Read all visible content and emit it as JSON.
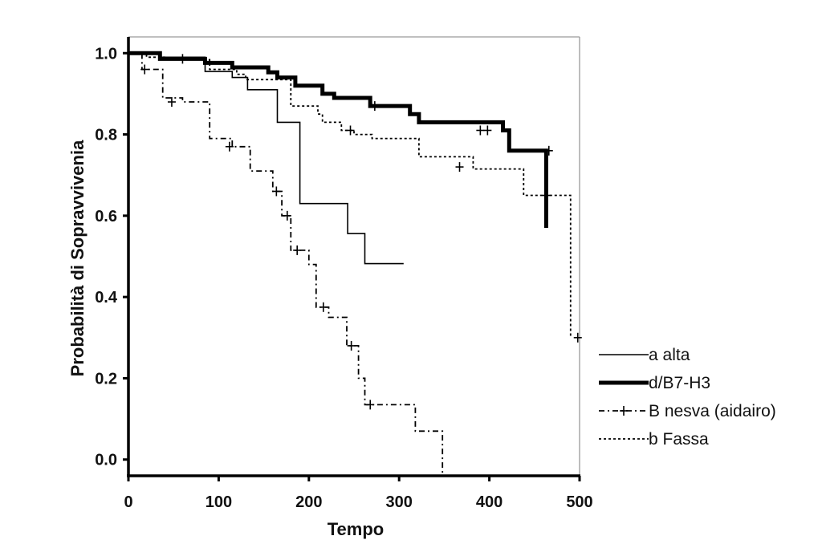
{
  "chart_data": {
    "type": "line",
    "xlabel": "Tempo",
    "ylabel": "Probabilità di Sopravvivenia",
    "xlim": [
      0,
      500
    ],
    "ylim": [
      -0.04,
      1.04
    ],
    "x_ticks": [
      0,
      100,
      200,
      300,
      400,
      500
    ],
    "y_ticks": [
      0.0,
      0.2,
      0.4,
      0.6,
      0.8,
      1.0
    ],
    "x_tick_labels": [
      "0",
      "100",
      "200",
      "300",
      "400",
      "500"
    ],
    "y_tick_labels": [
      "0.0",
      "0.2",
      "0.4",
      "0.6",
      "0.8",
      "1.0"
    ],
    "legend_position": "bottom-right",
    "series": [
      {
        "name": "a alta",
        "style": "thin-solid",
        "color": "#000000",
        "steps": [
          [
            0,
            1.0
          ],
          [
            35,
            0.99
          ],
          [
            85,
            0.955
          ],
          [
            115,
            0.94
          ],
          [
            132,
            0.91
          ],
          [
            165,
            0.83
          ],
          [
            190,
            0.63
          ],
          [
            243,
            0.556
          ],
          [
            262,
            0.482
          ],
          [
            305,
            0.482
          ]
        ],
        "censored": []
      },
      {
        "name": "d/B7-H3",
        "style": "thick-solid",
        "color": "#000000",
        "steps": [
          [
            0,
            1.0
          ],
          [
            35,
            0.986
          ],
          [
            85,
            0.976
          ],
          [
            115,
            0.965
          ],
          [
            155,
            0.953
          ],
          [
            165,
            0.94
          ],
          [
            185,
            0.92
          ],
          [
            215,
            0.9
          ],
          [
            228,
            0.89
          ],
          [
            268,
            0.87
          ],
          [
            312,
            0.85
          ],
          [
            322,
            0.83
          ],
          [
            415,
            0.81
          ],
          [
            422,
            0.76
          ],
          [
            463,
            0.76
          ],
          [
            463,
            0.57
          ]
        ],
        "censored": [
          [
            60,
            0.986
          ],
          [
            273,
            0.87
          ],
          [
            398,
            0.81
          ],
          [
            466,
            0.76
          ]
        ]
      },
      {
        "name": "B nesva (aidairo)",
        "style": "dash-dot",
        "color": "#000000",
        "steps": [
          [
            0,
            1.0
          ],
          [
            15,
            0.96
          ],
          [
            38,
            0.89
          ],
          [
            60,
            0.88
          ],
          [
            90,
            0.79
          ],
          [
            115,
            0.77
          ],
          [
            135,
            0.71
          ],
          [
            160,
            0.66
          ],
          [
            170,
            0.6
          ],
          [
            180,
            0.515
          ],
          [
            200,
            0.48
          ],
          [
            208,
            0.375
          ],
          [
            222,
            0.35
          ],
          [
            242,
            0.28
          ],
          [
            255,
            0.2
          ],
          [
            262,
            0.135
          ],
          [
            302,
            0.135
          ],
          [
            318,
            0.07
          ],
          [
            348,
            0.07
          ],
          [
            348,
            -0.04
          ]
        ],
        "censored": [
          [
            18,
            0.96
          ],
          [
            48,
            0.88
          ],
          [
            112,
            0.77
          ],
          [
            164,
            0.66
          ],
          [
            176,
            0.6
          ],
          [
            187,
            0.515
          ],
          [
            216,
            0.375
          ],
          [
            247,
            0.28
          ],
          [
            268,
            0.135
          ],
          [
            498,
            0.3
          ]
        ]
      },
      {
        "name": "b Fassa",
        "style": "dotted",
        "color": "#000000",
        "steps": [
          [
            0,
            1.0
          ],
          [
            20,
            0.99
          ],
          [
            40,
            0.984
          ],
          [
            90,
            0.96
          ],
          [
            120,
            0.948
          ],
          [
            130,
            0.935
          ],
          [
            180,
            0.87
          ],
          [
            210,
            0.85
          ],
          [
            215,
            0.83
          ],
          [
            236,
            0.81
          ],
          [
            250,
            0.8
          ],
          [
            270,
            0.79
          ],
          [
            300,
            0.79
          ],
          [
            322,
            0.745
          ],
          [
            375,
            0.745
          ],
          [
            382,
            0.715
          ],
          [
            430,
            0.715
          ],
          [
            438,
            0.65
          ],
          [
            490,
            0.65
          ],
          [
            490,
            0.3
          ]
        ],
        "censored": [
          [
            246,
            0.81
          ],
          [
            390,
            0.81
          ],
          [
            367,
            0.72
          ],
          [
            463,
            0.65
          ]
        ]
      }
    ]
  }
}
